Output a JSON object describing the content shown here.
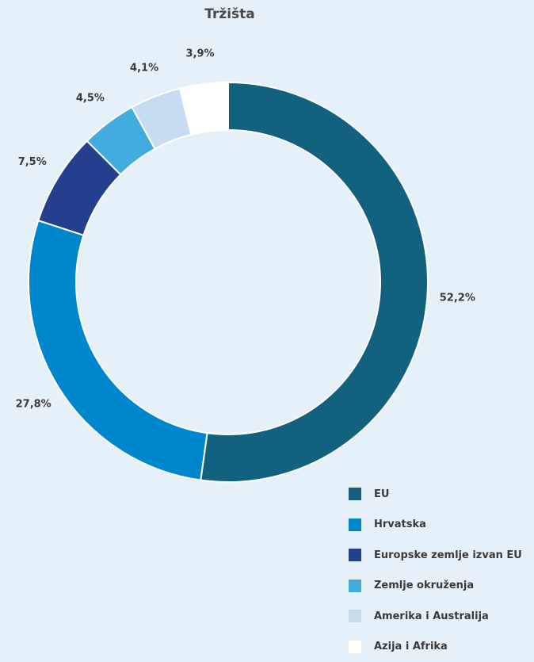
{
  "chart_data": {
    "type": "pie",
    "title": "Tržišta",
    "labels": [
      "EU",
      "Hrvatska",
      "Europske zemlje izvan EU",
      "Zemlje okruženja",
      "Amerika i Australija",
      "Azija i Afrika"
    ],
    "values": [
      52.2,
      27.8,
      7.5,
      4.5,
      4.1,
      3.9
    ],
    "value_labels": [
      "52,2%",
      "27,8%",
      "7,5%",
      "4,5%",
      "4,1%",
      "3,9%"
    ],
    "colors": [
      "#12617f",
      "#0086cc",
      "#233f8e",
      "#42acde",
      "#c6dcf2",
      "#ffffff"
    ],
    "donut": true,
    "legend": "bottom-right"
  }
}
